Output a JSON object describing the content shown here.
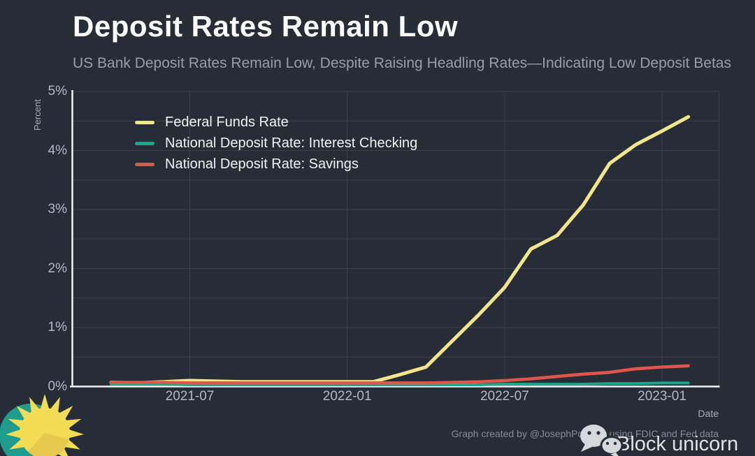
{
  "header": {
    "title": "Deposit Rates Remain Low",
    "subtitle": "US Bank Deposit Rates Remain Low, Despite Raising Headling Rates—Indicating Low Deposit Betas"
  },
  "branding": {
    "credit": "Graph created by @JosephPolitano using FDIC and Fed data",
    "name": "Block unicorn",
    "wechat_icon": "wechat-icon",
    "sun_logo": "sun-logo-icon",
    "wechat_color": "#d6d8dc",
    "sun_yellow": "#f2dc55",
    "sun_wedge": "#e6c94e",
    "sun_teal": "#1f9c8e"
  },
  "colors": {
    "background": "#272d37",
    "grid": "#3a414b",
    "axis": "#f2f3f5",
    "title_text": "#fdfdfd",
    "subtitle_text": "#989ea6",
    "tick_text": "#b4b9c0"
  },
  "chart_data": {
    "type": "line",
    "title": "Deposit Rates Remain Low",
    "subtitle": "US Bank Deposit Rates Remain Low, Despite Raising Headling Rates—Indicating Low Deposit Betas",
    "xlabel": "Date",
    "ylabel": "Percent",
    "ylim": [
      0,
      5
    ],
    "yticks": [
      "0%",
      "1%",
      "2%",
      "3%",
      "4%",
      "5%"
    ],
    "xticks": [
      "2021-07",
      "2022-01",
      "2022-07",
      "2023-01"
    ],
    "grid": true,
    "legend_position": "top-left",
    "x": [
      "2021-04",
      "2021-05",
      "2021-06",
      "2021-07",
      "2021-08",
      "2021-09",
      "2021-10",
      "2021-11",
      "2021-12",
      "2022-01",
      "2022-02",
      "2022-03",
      "2022-04",
      "2022-05",
      "2022-06",
      "2022-07",
      "2022-08",
      "2022-09",
      "2022-10",
      "2022-11",
      "2022-12",
      "2023-01",
      "2023-02"
    ],
    "series": [
      {
        "name": "Federal Funds Rate",
        "color": "#f3e58d",
        "values": [
          0.07,
          0.06,
          0.08,
          0.1,
          0.09,
          0.08,
          0.08,
          0.08,
          0.08,
          0.08,
          0.08,
          0.2,
          0.33,
          0.77,
          1.21,
          1.68,
          2.33,
          2.56,
          3.08,
          3.78,
          4.1,
          4.33,
          4.57
        ]
      },
      {
        "name": "National Deposit Rate: Interest Checking",
        "color": "#1ba78e",
        "values": [
          0.04,
          0.04,
          0.04,
          0.03,
          0.03,
          0.03,
          0.03,
          0.03,
          0.03,
          0.03,
          0.03,
          0.03,
          0.03,
          0.03,
          0.03,
          0.04,
          0.04,
          0.04,
          0.04,
          0.05,
          0.05,
          0.06,
          0.06
        ]
      },
      {
        "name": "National Deposit Rate: Savings",
        "color": "#e1564c",
        "values": [
          0.07,
          0.07,
          0.07,
          0.06,
          0.06,
          0.06,
          0.06,
          0.06,
          0.06,
          0.06,
          0.06,
          0.06,
          0.06,
          0.07,
          0.08,
          0.1,
          0.13,
          0.17,
          0.21,
          0.24,
          0.3,
          0.33,
          0.35
        ]
      }
    ]
  }
}
